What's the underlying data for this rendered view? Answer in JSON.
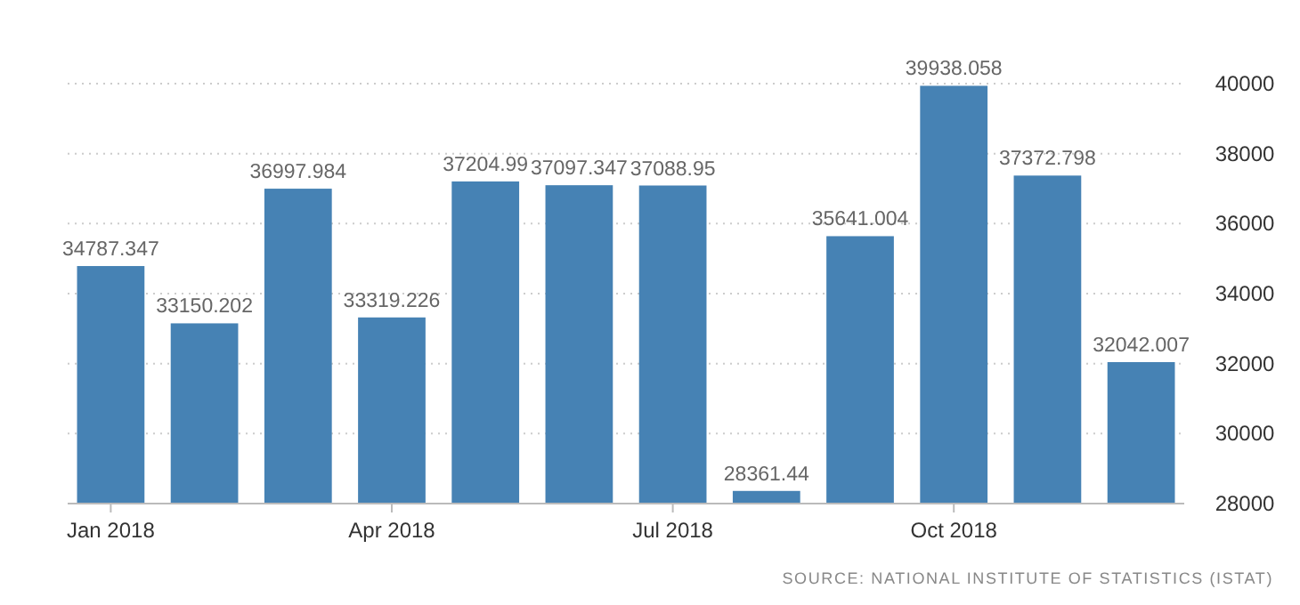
{
  "chart_data": {
    "type": "bar",
    "categories": [
      "Jan 2018",
      null,
      null,
      "Apr 2018",
      null,
      null,
      "Jul 2018",
      null,
      null,
      "Oct 2018",
      null,
      null
    ],
    "values": [
      34787.347,
      33150.202,
      36997.984,
      33319.226,
      37204.99,
      37097.347,
      37088.95,
      28361.44,
      35641.004,
      39938.058,
      37372.798,
      32042.007
    ],
    "color": "#4682b4",
    "ylim": [
      28000,
      40000
    ],
    "yticks": [
      28000,
      30000,
      32000,
      34000,
      36000,
      38000,
      40000
    ],
    "grid": "y",
    "data_labels": true,
    "annotations": [
      "SOURCE: NATIONAL INSTITUTE OF STATISTICS (ISTAT)"
    ]
  }
}
